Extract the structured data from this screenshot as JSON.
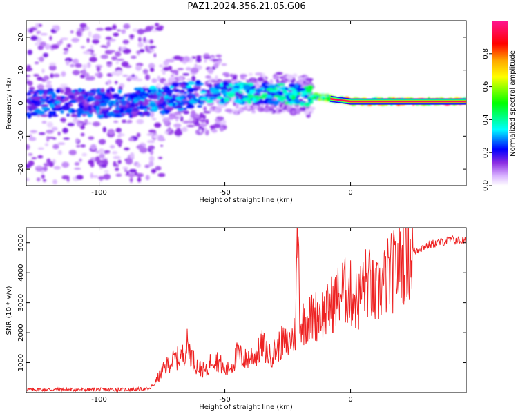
{
  "title": "PAZ1.2024.356.21.05.G06",
  "chart_data": [
    {
      "type": "heatmap",
      "xlabel": "Height of straight line (km)",
      "ylabel": "Frequency (Hz)",
      "xlim": [
        -129,
        46
      ],
      "ylim": [
        -25,
        25
      ],
      "xticks": [
        -100,
        -50,
        0
      ],
      "yticks": [
        -20,
        -10,
        0,
        10,
        20
      ],
      "xtick_labels": [
        "-100",
        "-50",
        "0"
      ],
      "ytick_labels": [
        "-20",
        "-10",
        "0",
        "10",
        "20"
      ],
      "grid": false,
      "colorbar": {
        "label": "Normalized spectral amplitude",
        "range": [
          0,
          1
        ],
        "ticks": [
          0.0,
          0.2,
          0.4,
          0.6,
          0.8
        ],
        "tick_labels": [
          "0.0",
          "0.2",
          "0.4",
          "0.6",
          "0.8"
        ],
        "colors": [
          "#ffffff",
          "#d9b3ff",
          "#8a2be2",
          "#0000ff",
          "#00ffff",
          "#00ff00",
          "#ffff00",
          "#ffa500",
          "#ff0000",
          "#ff1493"
        ]
      },
      "ridge": {
        "x": [
          -129,
          -110,
          -90,
          -75,
          -60,
          -45,
          -35,
          -25,
          -15,
          -5,
          0,
          10,
          20,
          30,
          46
        ],
        "y": [
          0,
          0,
          0,
          1,
          3,
          3,
          3,
          3,
          2,
          1,
          0.5,
          0.5,
          0.5,
          0.5,
          0.5
        ],
        "amplitude": [
          0.3,
          0.3,
          0.3,
          0.35,
          0.35,
          0.4,
          0.45,
          0.45,
          0.6,
          0.75,
          0.85,
          0.9,
          0.92,
          0.95,
          0.95
        ]
      }
    },
    {
      "type": "line",
      "xlabel": "Height of straight line (km)",
      "ylabel": "SNR (10 * v/v)",
      "xlim": [
        -129,
        46
      ],
      "ylim": [
        0,
        5500
      ],
      "xticks": [
        -100,
        -50,
        0
      ],
      "yticks": [
        1000,
        2000,
        3000,
        4000,
        5000
      ],
      "xtick_labels": [
        "-100",
        "-50",
        "0"
      ],
      "ytick_labels": [
        "1000",
        "2000",
        "3000",
        "4000",
        "5000"
      ],
      "grid": false,
      "series": [
        {
          "color": "#ee2222",
          "x": [
            -129,
            -120,
            -110,
            -100,
            -90,
            -80,
            -78,
            -75,
            -72,
            -70,
            -67,
            -65,
            -62,
            -60,
            -57,
            -55,
            -52,
            -50,
            -47,
            -45,
            -42,
            -40,
            -37,
            -35,
            -32,
            -30,
            -27,
            -25,
            -22,
            -21,
            -20,
            -18,
            -15,
            -12,
            -10,
            -8,
            -5,
            -3,
            0,
            3,
            5,
            7,
            10,
            12,
            15,
            18,
            20,
            25,
            30,
            35,
            40,
            46
          ],
          "y": [
            100,
            100,
            100,
            100,
            100,
            120,
            300,
            700,
            1000,
            1100,
            1200,
            1600,
            1000,
            800,
            700,
            1200,
            1000,
            700,
            900,
            1300,
            1100,
            1200,
            1300,
            1600,
            1200,
            1400,
            1700,
            1600,
            2000,
            5500,
            2300,
            2400,
            2500,
            2700,
            2600,
            2900,
            3200,
            3400,
            3300,
            3000,
            3600,
            3700,
            3200,
            3500,
            3900,
            4100,
            4400,
            4700,
            4900,
            5000,
            5100,
            5050
          ]
        }
      ]
    }
  ]
}
